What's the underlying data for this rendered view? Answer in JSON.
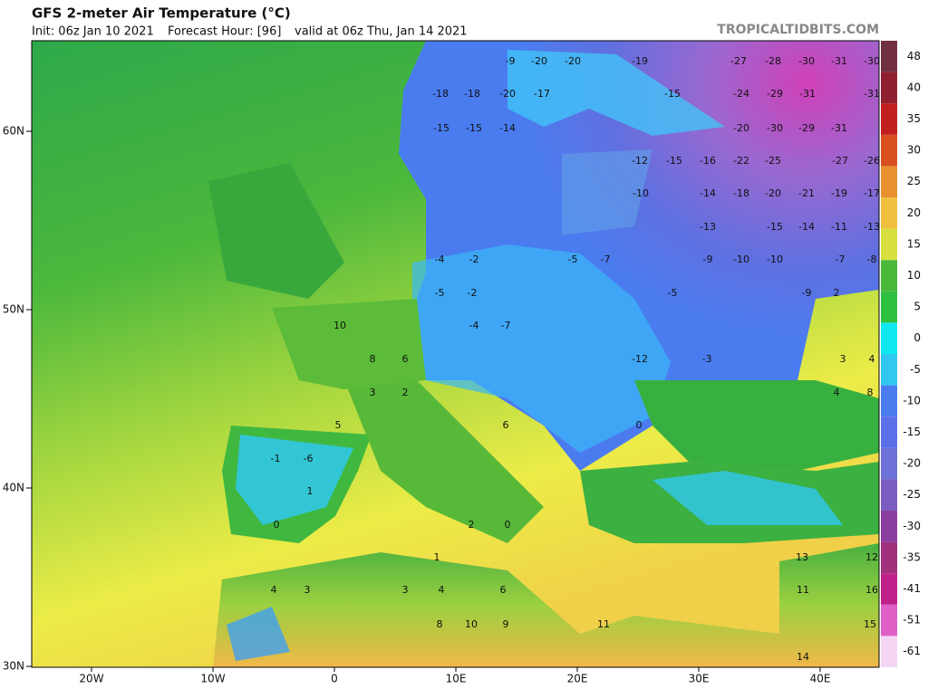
{
  "header": {
    "title": "GFS 2-meter Air Temperature (°C)",
    "init": "Init: 06z Jan 10 2021",
    "forecast_hour": "Forecast Hour: [96]",
    "valid": "valid at 06z Thu, Jan 14 2021",
    "brand": "TROPICALTIDBITS.COM"
  },
  "lat_ticks": [
    {
      "value": 60,
      "label": "60N"
    },
    {
      "value": 50,
      "label": "50N"
    },
    {
      "value": 40,
      "label": "40N"
    },
    {
      "value": 30,
      "label": "30N"
    }
  ],
  "lon_ticks": [
    {
      "value": -20,
      "label": "20W"
    },
    {
      "value": -10,
      "label": "10W"
    },
    0,
    {
      "value": 10,
      "label": "10E"
    },
    {
      "value": 20,
      "label": "20E"
    },
    {
      "value": 30,
      "label": "30E"
    },
    {
      "value": 40,
      "label": "40E"
    }
  ],
  "colorbar": {
    "labels": [
      -61,
      -51,
      -41,
      -35,
      -30,
      -25,
      -20,
      -15,
      -10,
      -5,
      0,
      5,
      10,
      15,
      20,
      25,
      30,
      35,
      40,
      48
    ],
    "colors": [
      "#f4d6f4",
      "#e060c8",
      "#c0208a",
      "#a0307c",
      "#8a3fa0",
      "#7b5cc0",
      "#6e72d8",
      "#5a6fe8",
      "#4a7cf0",
      "#30c8f0",
      "#10e8f0",
      "#30c040",
      "#4ab83a",
      "#d8e040",
      "#f0c040",
      "#e89030",
      "#d85020",
      "#c02020",
      "#902030",
      "#703040"
    ]
  },
  "map_values": [
    -9,
    -20,
    -20,
    -19,
    -27,
    -28,
    -30,
    -31,
    -30,
    -18,
    -18,
    -20,
    -17,
    -15,
    -24,
    -29,
    -31,
    -31,
    -15,
    -15,
    -14,
    -20,
    -30,
    -29,
    -31,
    -12,
    -15,
    -16,
    -22,
    -25,
    -27,
    -26,
    -10,
    -14,
    -18,
    -20,
    -21,
    -19,
    -17,
    -13,
    -15,
    -14,
    -11,
    -13,
    -4,
    -2,
    -5,
    -7,
    -9,
    -10,
    -10,
    -7,
    -8,
    -5,
    -2,
    -5,
    -9,
    2,
    -4,
    -7,
    -12,
    -3,
    3,
    4,
    0,
    10,
    8,
    6,
    5,
    6,
    4,
    8,
    3,
    2,
    1,
    -1,
    -6,
    0,
    2,
    0,
    1,
    3,
    4,
    6,
    3,
    4,
    8,
    10,
    9,
    11,
    13,
    11,
    14,
    15,
    16,
    12
  ]
}
